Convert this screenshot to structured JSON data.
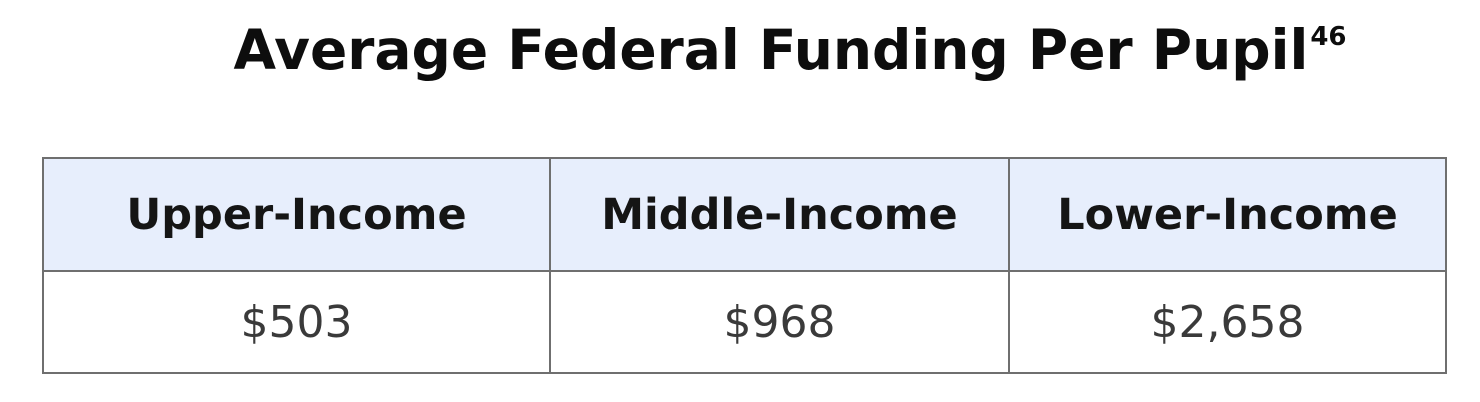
{
  "title": {
    "text": "Average Federal Funding Per Pupil",
    "footnote": "46"
  },
  "table": {
    "headers": [
      "Upper-Income",
      "Middle-Income",
      "Lower-Income"
    ],
    "rows": [
      [
        "$503",
        "$968",
        "$2,658"
      ]
    ]
  },
  "colors": {
    "header_background": "#e7eefc",
    "border": "#6f6f6f",
    "title_text": "#0d0d0d",
    "cell_text": "#3a3a3a"
  }
}
